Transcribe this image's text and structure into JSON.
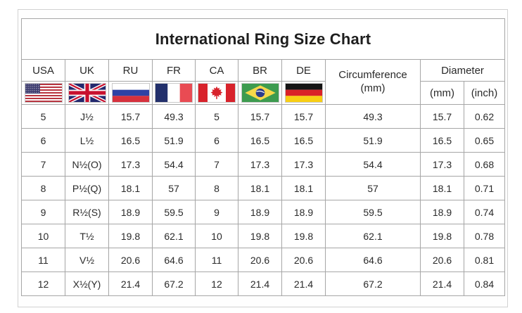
{
  "title": "International Ring Size Chart",
  "chart_data": {
    "type": "table",
    "title": "International Ring Size Chart",
    "country_columns": [
      {
        "label": "USA",
        "icon": "usa-flag-icon"
      },
      {
        "label": "UK",
        "icon": "uk-flag-icon"
      },
      {
        "label": "RU",
        "icon": "russia-flag-icon"
      },
      {
        "label": "FR",
        "icon": "france-flag-icon"
      },
      {
        "label": "CA",
        "icon": "canada-flag-icon"
      },
      {
        "label": "BR",
        "icon": "brazil-flag-icon"
      },
      {
        "label": "DE",
        "icon": "germany-flag-icon"
      }
    ],
    "circumference_header": "Circumference",
    "circumference_unit": "(mm)",
    "diameter_header": "Diameter",
    "diameter_units": [
      "(mm)",
      "(inch)"
    ],
    "column_keys": [
      "USA",
      "UK",
      "RU",
      "FR",
      "CA",
      "BR",
      "DE",
      "Circumference (mm)",
      "Diameter (mm)",
      "Diameter (inch)"
    ],
    "rows": [
      [
        "5",
        "J½",
        "15.7",
        "49.3",
        "5",
        "15.7",
        "15.7",
        "49.3",
        "15.7",
        "0.62"
      ],
      [
        "6",
        "L½",
        "16.5",
        "51.9",
        "6",
        "16.5",
        "16.5",
        "51.9",
        "16.5",
        "0.65"
      ],
      [
        "7",
        "N½(O)",
        "17.3",
        "54.4",
        "7",
        "17.3",
        "17.3",
        "54.4",
        "17.3",
        "0.68"
      ],
      [
        "8",
        "P½(Q)",
        "18.1",
        "57",
        "8",
        "18.1",
        "18.1",
        "57",
        "18.1",
        "0.71"
      ],
      [
        "9",
        "R½(S)",
        "18.9",
        "59.5",
        "9",
        "18.9",
        "18.9",
        "59.5",
        "18.9",
        "0.74"
      ],
      [
        "10",
        "T½",
        "19.8",
        "62.1",
        "10",
        "19.8",
        "19.8",
        "62.1",
        "19.8",
        "0.78"
      ],
      [
        "11",
        "V½",
        "20.6",
        "64.6",
        "11",
        "20.6",
        "20.6",
        "64.6",
        "20.6",
        "0.81"
      ],
      [
        "12",
        "X½(Y)",
        "21.4",
        "67.2",
        "12",
        "21.4",
        "21.4",
        "67.2",
        "21.4",
        "0.84"
      ]
    ]
  },
  "colors": {
    "table_border": "#a6a6a6",
    "frame_border": "#d2d2d2",
    "text": "#262626",
    "background": "#ffffff"
  }
}
